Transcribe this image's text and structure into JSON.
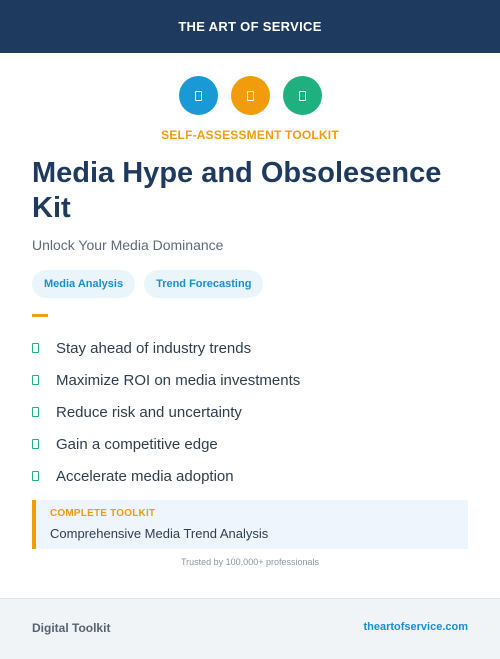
{
  "header": {
    "brand": "THE ART OF SERVICE"
  },
  "icons": [
    {
      "name": "document-icon",
      "color": "#199ad6"
    },
    {
      "name": "document-icon",
      "color": "#f09c0c"
    },
    {
      "name": "document-icon",
      "color": "#1fb07f"
    }
  ],
  "kicker": "SELF-ASSESSMENT TOOLKIT",
  "title": "Media Hype and Obsolesence Kit",
  "subtitle": "Unlock Your Media Dominance",
  "tags": [
    "Media Analysis",
    "Trend Forecasting"
  ],
  "benefits": [
    "Stay ahead of industry trends",
    "Maximize ROI on media investments",
    "Reduce risk and uncertainty",
    "Gain a competitive edge",
    "Accelerate media adoption"
  ],
  "callout": {
    "label": "COMPLETE TOOLKIT",
    "text": "Comprehensive Media Trend Analysis"
  },
  "trusted": "Trusted by 100,000+ professionals",
  "footer": {
    "left": "Digital Toolkit",
    "right": "theartofservice.com"
  },
  "colors": {
    "navy": "#1f3a5f",
    "blue": "#199ad6",
    "orange": "#f09c0c",
    "green": "#1fb07f"
  }
}
